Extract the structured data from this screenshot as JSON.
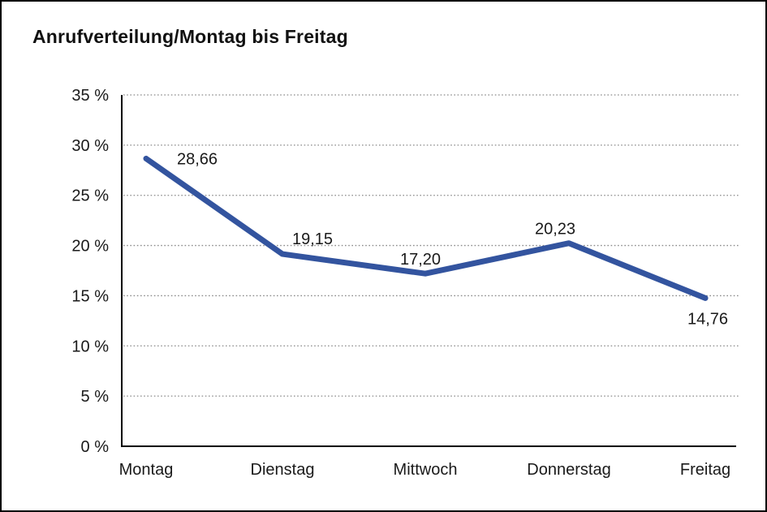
{
  "title": "Anrufverteilung/Montag bis Freitag",
  "chart_data": {
    "type": "line",
    "title": "Anrufverteilung/Montag bis Freitag",
    "categories": [
      "Montag",
      "Dienstag",
      "Mittwoch",
      "Donnerstag",
      "Freitag"
    ],
    "values": [
      28.66,
      19.15,
      17.2,
      20.23,
      14.76
    ],
    "value_labels": [
      "28,66",
      "19,15",
      "17,20",
      "20,23",
      "14,76"
    ],
    "xlabel": "",
    "ylabel": "",
    "ylim": [
      0,
      35
    ],
    "ytick_step": 5,
    "ytick_labels": [
      "0 %",
      "5 %",
      "10 %",
      "15 %",
      "20 %",
      "25 %",
      "30 %",
      "35 %"
    ],
    "grid": "horizontal-dotted",
    "legend": "none",
    "line_color": "#33549f",
    "axis_color": "#000000",
    "grid_color": "#8a8a8a",
    "text_color": "#1a1a1a"
  }
}
